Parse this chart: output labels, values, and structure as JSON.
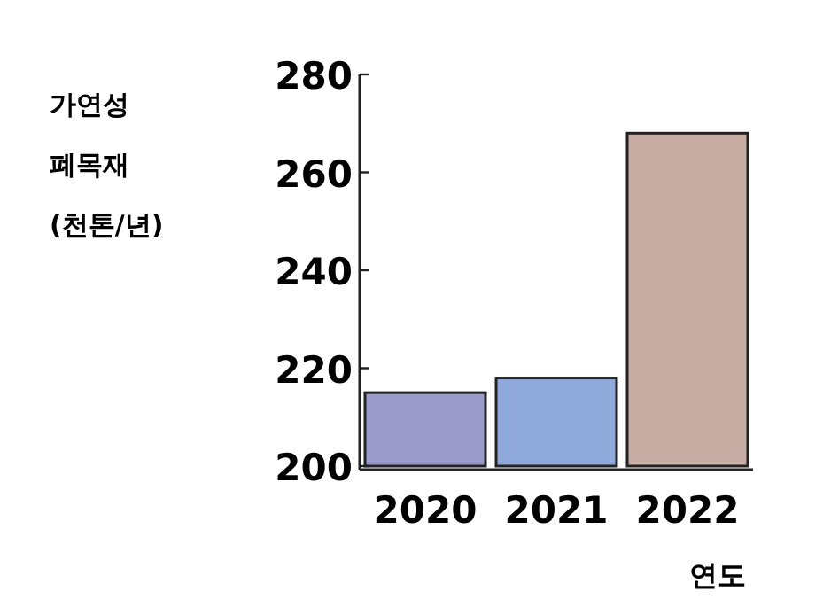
{
  "chart_data": {
    "type": "bar",
    "ylabel": "가연성 폐목재 (천톤/년)",
    "xlabel": "연도",
    "categories": [
      "2020",
      "2021",
      "2022"
    ],
    "values": [
      215,
      218,
      268
    ],
    "colors": [
      "#9b9bcb",
      "#8fa9da",
      "#c6aca2"
    ],
    "ylim": [
      200,
      280
    ],
    "yticks": [
      200,
      220,
      240,
      260,
      280
    ],
    "grid": false
  }
}
